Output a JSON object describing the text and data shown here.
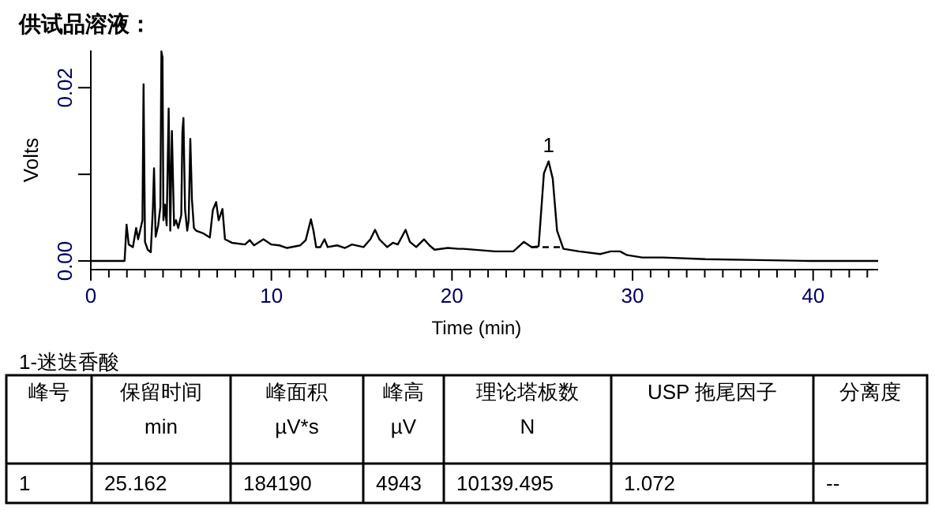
{
  "chart_data": [
    {
      "type": "line",
      "title": "供试品溶液：",
      "xlabel": "Time (min)",
      "ylabel": "Volts",
      "xlim": [
        0,
        43.6
      ],
      "ylim": [
        -0.001,
        0.0243
      ],
      "xticks": [
        0,
        {
          "value": 1,
          "label": null
        },
        {
          "value": 2,
          "label": null
        },
        {
          "value": 3,
          "label": null
        },
        {
          "value": 4,
          "label": null
        },
        {
          "value": 5,
          "label": null
        },
        {
          "value": 6,
          "label": null
        },
        {
          "value": 7,
          "label": null
        },
        {
          "value": 8,
          "label": null
        },
        {
          "value": 9,
          "label": null
        },
        10,
        {
          "value": 11,
          "label": null
        },
        {
          "value": 12,
          "label": null
        },
        {
          "value": 13,
          "label": null
        },
        {
          "value": 14,
          "label": null
        },
        {
          "value": 15,
          "label": null
        },
        {
          "value": 16,
          "label": null
        },
        {
          "value": 17,
          "label": null
        },
        {
          "value": 18,
          "label": null
        },
        {
          "value": 19,
          "label": null
        },
        20,
        {
          "value": 21,
          "label": null
        },
        {
          "value": 22,
          "label": null
        },
        {
          "value": 23,
          "label": null
        },
        {
          "value": 24,
          "label": null
        },
        {
          "value": 25,
          "label": null
        },
        {
          "value": 26,
          "label": null
        },
        {
          "value": 27,
          "label": null
        },
        {
          "value": 28,
          "label": null
        },
        {
          "value": 29,
          "label": null
        },
        30,
        {
          "value": 31,
          "label": null
        },
        {
          "value": 32,
          "label": null
        },
        {
          "value": 33,
          "label": null
        },
        {
          "value": 34,
          "label": null
        },
        {
          "value": 35,
          "label": null
        },
        {
          "value": 36,
          "label": null
        },
        {
          "value": 37,
          "label": null
        },
        {
          "value": 38,
          "label": null
        },
        {
          "value": 39,
          "label": null
        },
        40,
        {
          "value": 41,
          "label": null
        },
        {
          "value": 42,
          "label": null
        },
        {
          "value": 43,
          "label": null
        }
      ],
      "yticks": [
        {
          "value": 0,
          "label": "0.00"
        },
        {
          "value": 0.01,
          "label": null
        },
        {
          "value": 0.02,
          "label": "0.02"
        }
      ],
      "grid": false,
      "annotations": [
        {
          "text": "1",
          "x": 25.35,
          "y": 0.0115
        }
      ],
      "series": [
        {
          "color": "#000000",
          "line_style": "solid",
          "x": [
            0,
            1.87,
            1.98,
            2.1,
            2.33,
            2.51,
            2.62,
            2.86,
            2.92,
            3.0,
            3.15,
            3.32,
            3.44,
            3.5,
            3.59,
            3.73,
            3.85,
            3.91,
            3.97,
            4.02,
            4.11,
            4.2,
            4.31,
            4.4,
            4.49,
            4.61,
            4.72,
            4.84,
            5.01,
            5.07,
            5.13,
            5.22,
            5.34,
            5.42,
            5.51,
            5.6,
            5.71,
            5.83,
            6.21,
            6.59,
            6.76,
            6.94,
            7.08,
            7.29,
            7.43,
            7.81,
            8.54,
            8.8,
            9.04,
            9.56,
            10.0,
            10.44,
            10.87,
            11.6,
            11.9,
            12.19,
            12.33,
            12.48,
            12.71,
            12.94,
            13.12,
            13.64,
            14.08,
            14.46,
            15.1,
            15.48,
            15.74,
            15.98,
            16.41,
            16.73,
            17.0,
            17.43,
            17.67,
            18.02,
            18.45,
            18.75,
            19.04,
            19.77,
            20.35,
            20.63,
            22.38,
            23.4,
            23.98,
            24.41,
            24.8,
            25.09,
            25.35,
            25.58,
            25.82,
            26.17,
            27.04,
            28.21,
            28.79,
            29.31,
            29.66,
            30.53,
            31.7,
            34.03,
            36.95,
            39.86,
            43.6
          ],
          "values": [
            0,
            0,
            0.0042,
            0.0019,
            0.0016,
            0.0038,
            0.0025,
            0.0047,
            0.0204,
            0.0022,
            0.0013,
            0.001,
            0.0062,
            0.0107,
            0.0028,
            0.0041,
            0.0062,
            0.0242,
            0.0235,
            0.0047,
            0.0065,
            0.0041,
            0.0176,
            0.0035,
            0.015,
            0.0041,
            0.0047,
            0.0038,
            0.0053,
            0.0148,
            0.0165,
            0.0059,
            0.0035,
            0.0047,
            0.0141,
            0.0071,
            0.0038,
            0.0035,
            0.0032,
            0.0027,
            0.0059,
            0.0068,
            0.0047,
            0.006,
            0.0025,
            0.0021,
            0.0019,
            0.0024,
            0.0018,
            0.0025,
            0.0019,
            0.0018,
            0.0015,
            0.0018,
            0.0024,
            0.0048,
            0.0035,
            0.0016,
            0.0016,
            0.0025,
            0.0016,
            0.0018,
            0.0015,
            0.0019,
            0.0016,
            0.0025,
            0.0036,
            0.0025,
            0.0016,
            0.0021,
            0.0019,
            0.0036,
            0.0022,
            0.0016,
            0.0025,
            0.0018,
            0.0013,
            0.0015,
            0.0014,
            0.0014,
            0.0011,
            0.0011,
            0.0022,
            0.0016,
            0.0017,
            0.0101,
            0.0115,
            0.0095,
            0.0035,
            0.0014,
            0.0011,
            0.0008,
            0.0011,
            0.0011,
            0.0007,
            0.0004,
            0.0004,
            0.0002,
            0.0001,
            0,
            0
          ]
        },
        {
          "color": "#000000",
          "line_style": "dashed",
          "x": [
            24.4,
            26.0
          ],
          "values": [
            0.0016,
            0.0016
          ]
        }
      ]
    },
    {
      "type": "other",
      "title": "1-迷迭香酸",
      "categories": [
        "峰号",
        "保留时间\nmin",
        "峰面积\nµV*s",
        "峰高\nµV",
        "理论塔板数\nN",
        "USP 拖尾因子",
        "分离度"
      ],
      "annotations": [
        "1",
        "25.162",
        "184190",
        "4943",
        "10139.495",
        "1.072",
        "--"
      ]
    }
  ]
}
